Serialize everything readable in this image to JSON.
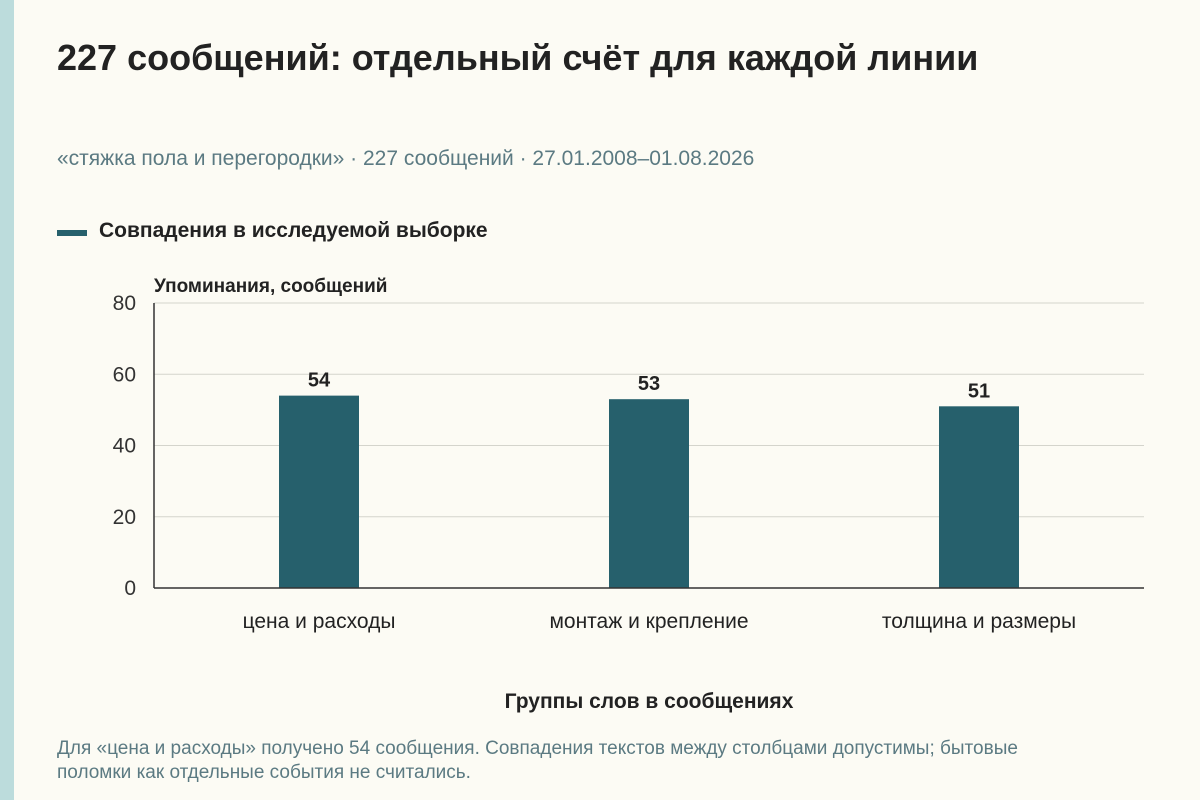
{
  "title": "227 сообщений: отдельный счёт для каждой линии",
  "subtitle": "«стяжка пола и перегородки» · 227 сообщений · 27.01.2008–01.08.2026",
  "footnote": "Для «цена и расходы» получено 54 сообщения. Совпадения текстов между столбцами допустимы; бытовые поломки как отдельные события не считались.",
  "colors": {
    "bar": "#26606c",
    "grid": "#d4d4cc",
    "axis": "#333333"
  },
  "chart_data": {
    "type": "bar",
    "categories": [
      "цена и расходы",
      "монтаж и крепление",
      "толщина и размеры"
    ],
    "series": [
      {
        "name": "Совпадения в исследуемой выборке",
        "values": [
          54,
          53,
          51
        ]
      }
    ],
    "xlabel": "Группы слов в сообщениях",
    "ylabel": "Упоминания, сообщений",
    "ylim": [
      0,
      80
    ],
    "yticks": [
      0,
      20,
      40,
      60,
      80
    ],
    "grid": true,
    "legend": "top-left"
  }
}
